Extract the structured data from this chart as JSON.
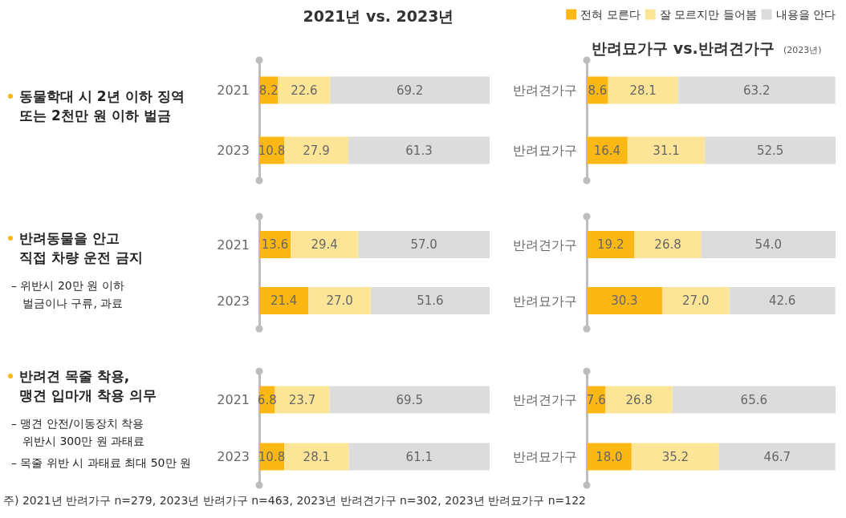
{
  "chart_data": [
    {
      "type": "bar",
      "orientation": "horizontal",
      "stacked": true,
      "title": "2021년 vs. 2023년",
      "legend": "top right",
      "categories": [
        "2021",
        "2023"
      ],
      "annotations": [
        "동물학대 시 2년 이하 징역\n또는 2천만 원 이하 벌금"
      ],
      "series": [
        {
          "name": "전혀 모른다",
          "color": "#fbb714",
          "values": [
            8.2,
            10.8
          ],
          "value_labels": [
            "8.2",
            "10.8"
          ]
        },
        {
          "name": "잘 모르지만 들어봄",
          "color": "#fde597",
          "values": [
            22.6,
            27.9
          ],
          "value_labels": [
            "22.6",
            "27.9"
          ]
        },
        {
          "name": "내용을 안다",
          "color": "#dcdcdc",
          "values": [
            69.2,
            61.3
          ],
          "value_labels": [
            "69.2",
            "61.3"
          ]
        }
      ]
    },
    {
      "type": "bar",
      "orientation": "horizontal",
      "stacked": true,
      "title": "반려묘가구 vs.반려견가구",
      "subtitle": "(2023년)",
      "categories": [
        "반려견가구",
        "반려묘가구"
      ],
      "series": [
        {
          "color": "#fbb714",
          "values": [
            8.6,
            16.4
          ],
          "value_labels": [
            "8.6",
            "16.4"
          ]
        },
        {
          "color": "#fde597",
          "values": [
            28.1,
            31.1
          ],
          "value_labels": [
            "28.1",
            "31.1"
          ]
        },
        {
          "color": "#dcdcdc",
          "values": [
            63.2,
            52.5
          ],
          "value_labels": [
            "63.2",
            "52.5"
          ]
        }
      ]
    },
    {
      "type": "bar",
      "orientation": "horizontal",
      "stacked": true,
      "categories": [
        "2021",
        "2023"
      ],
      "annotations": [
        "반려동물을 안고\n직접 차량 운전 금지",
        "– 위반시 20만 원 이하\n벌금이나 구류, 과료"
      ],
      "series": [
        {
          "color": "#fbb714",
          "values": [
            13.6,
            21.4
          ],
          "value_labels": [
            "13.6",
            "21.4"
          ]
        },
        {
          "color": "#fde597",
          "values": [
            29.4,
            27.0
          ],
          "value_labels": [
            "29.4",
            "27.0"
          ]
        },
        {
          "color": "#dcdcdc",
          "values": [
            57.0,
            51.6
          ],
          "value_labels": [
            "57.0",
            "51.6"
          ]
        }
      ]
    },
    {
      "type": "bar",
      "orientation": "horizontal",
      "stacked": true,
      "categories": [
        "반려견가구",
        "반려묘가구"
      ],
      "series": [
        {
          "color": "#fbb714",
          "values": [
            19.2,
            30.3
          ],
          "value_labels": [
            "19.2",
            "30.3"
          ]
        },
        {
          "color": "#fde597",
          "values": [
            26.8,
            27.0
          ],
          "value_labels": [
            "26.8",
            "27.0"
          ]
        },
        {
          "color": "#dcdcdc",
          "values": [
            54.0,
            42.6
          ],
          "value_labels": [
            "54.0",
            "42.6"
          ]
        }
      ]
    },
    {
      "type": "bar",
      "orientation": "horizontal",
      "stacked": true,
      "categories": [
        "2021",
        "2023"
      ],
      "annotations": [
        "반려견 목줄 착용,\n맹견 입마개 착용 의무",
        "– 맹견 안전/이동장치 착용\n위반시 300만 원 과태료",
        "– 목줄 위반 시 과태료  최대 50만 원"
      ],
      "series": [
        {
          "color": "#fbb714",
          "values": [
            6.8,
            10.8
          ],
          "value_labels": [
            "6.8",
            "10.8"
          ]
        },
        {
          "color": "#fde597",
          "values": [
            23.7,
            28.1
          ],
          "value_labels": [
            "23.7",
            "28.1"
          ]
        },
        {
          "color": "#dcdcdc",
          "values": [
            69.5,
            61.1
          ],
          "value_labels": [
            "69.5",
            "61.1"
          ]
        }
      ]
    },
    {
      "type": "bar",
      "orientation": "horizontal",
      "stacked": true,
      "categories": [
        "반려견가구",
        "반려묘가구"
      ],
      "annotations": [
        "주) 2021년 반려가구 n=279, 2023년 반려가구 n=463, 2023년 반려견가구 n=302, 2023년 반려묘가구 n=122"
      ],
      "series": [
        {
          "color": "#fbb714",
          "values": [
            7.6,
            18.0
          ],
          "value_labels": [
            "7.6",
            "18.0"
          ]
        },
        {
          "color": "#fde597",
          "values": [
            26.8,
            35.2
          ],
          "value_labels": [
            "26.8",
            "35.2"
          ]
        },
        {
          "color": "#dcdcdc",
          "values": [
            65.6,
            46.7
          ],
          "value_labels": [
            "65.6",
            "46.7"
          ]
        }
      ]
    }
  ]
}
